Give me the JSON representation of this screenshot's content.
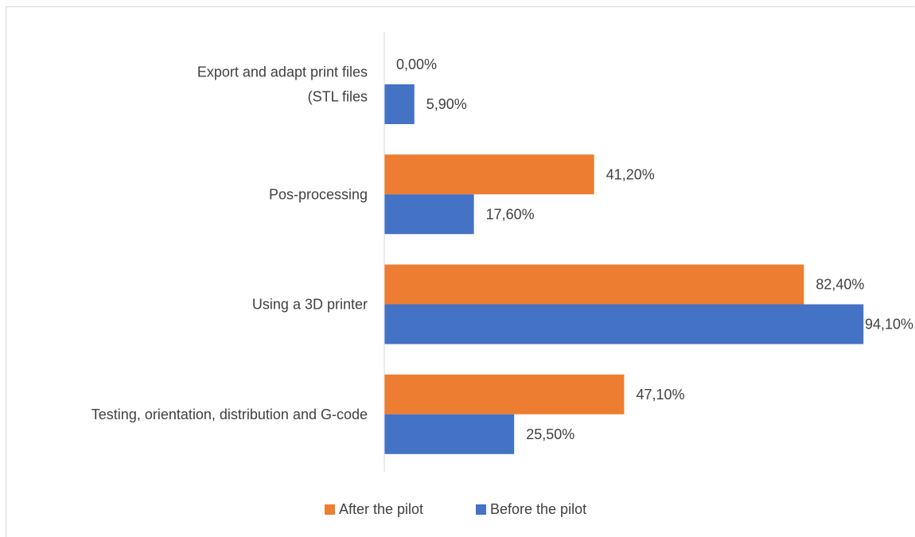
{
  "chart_data": {
    "type": "bar",
    "orientation": "horizontal",
    "categories": [
      [
        "Export and adapt print files",
        "(STL files"
      ],
      [
        "Pos-processing"
      ],
      [
        "Using a 3D printer"
      ],
      [
        "Testing, orientation, distribution and G-code"
      ]
    ],
    "series": [
      {
        "name": "After the pilot",
        "color": "#ED7D31",
        "values": [
          0.0,
          41.2,
          82.4,
          47.1
        ],
        "labels": [
          "0,00%",
          "41,20%",
          "82,40%",
          "47,10%"
        ]
      },
      {
        "name": "Before the pilot",
        "color": "#4472C4",
        "values": [
          5.9,
          17.6,
          94.1,
          25.5
        ],
        "labels": [
          "5,90%",
          "17,60%",
          "94,10%",
          "25,50%"
        ]
      }
    ],
    "xlim": [
      0,
      100
    ],
    "grid": false,
    "legend_position": "bottom",
    "axis_color": "#d9d9d9",
    "label_color": "#404040"
  }
}
